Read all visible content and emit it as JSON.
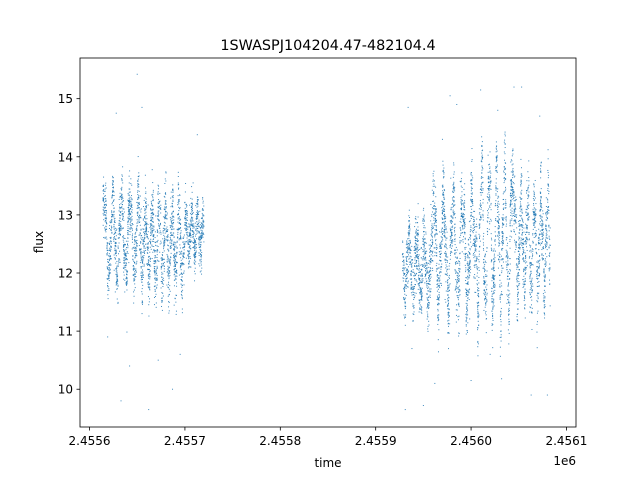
{
  "chart_data": {
    "type": "scatter",
    "title": "1SWASPJ104204.47-482104.4",
    "xlabel": "time",
    "ylabel": "flux",
    "x_offset_label": "1e6",
    "xlim": [
      2.45559,
      2.45611
    ],
    "ylim": [
      9.35,
      15.7
    ],
    "x_ticks": [
      2.4556,
      2.4557,
      2.4558,
      2.4559,
      2.456,
      2.4561
    ],
    "x_tick_labels": [
      "2.4556",
      "2.4557",
      "2.4558",
      "2.4559",
      "2.4560",
      "2.4561"
    ],
    "y_ticks": [
      10,
      11,
      12,
      13,
      14,
      15
    ],
    "y_tick_labels": [
      "10",
      "11",
      "12",
      "13",
      "14",
      "15"
    ],
    "grid": false,
    "marker_color": "#1f77b4",
    "series": [
      {
        "segments": [
          {
            "x_start": 2.455614,
            "x_end": 2.455652,
            "y_center": 12.65,
            "amplitude": 0.6,
            "period_days": 9,
            "phase": 0.5,
            "scatter": 0.25
          },
          {
            "x_start": 2.455652,
            "x_end": 2.4557,
            "y_center": 12.5,
            "amplitude": 0.55,
            "period_days": 7,
            "phase": 1.8,
            "scatter": 0.28
          },
          {
            "x_start": 2.4557,
            "x_end": 2.45572,
            "y_center": 12.7,
            "amplitude": 0.3,
            "period_days": 6,
            "phase": 0.2,
            "scatter": 0.22
          },
          {
            "x_start": 2.455928,
            "x_end": 2.45596,
            "y_center": 12.1,
            "amplitude": 0.45,
            "period_days": 8,
            "phase": 2.4,
            "scatter": 0.28
          },
          {
            "x_start": 2.45596,
            "x_end": 2.456005,
            "y_center": 12.4,
            "amplitude": 0.8,
            "period_days": 10,
            "phase": 0.9,
            "scatter": 0.3
          },
          {
            "x_start": 2.456005,
            "x_end": 2.456045,
            "y_center": 12.6,
            "amplitude": 1.1,
            "period_days": 8,
            "phase": 3.0,
            "scatter": 0.3
          },
          {
            "x_start": 2.456045,
            "x_end": 2.456083,
            "y_center": 12.5,
            "amplitude": 0.7,
            "period_days": 7,
            "phase": 1.2,
            "scatter": 0.3
          }
        ],
        "outliers": [
          [
            2.455628,
            14.75
          ],
          [
            2.455633,
            9.8
          ],
          [
            2.455642,
            10.4
          ],
          [
            2.45565,
            15.42
          ],
          [
            2.455655,
            14.85
          ],
          [
            2.455662,
            9.65
          ],
          [
            2.455672,
            10.5
          ],
          [
            2.455687,
            10.0
          ],
          [
            2.455695,
            10.6
          ],
          [
            2.455713,
            14.38
          ],
          [
            2.455619,
            10.9
          ],
          [
            2.455931,
            9.65
          ],
          [
            2.455934,
            14.85
          ],
          [
            2.455938,
            10.7
          ],
          [
            2.45595,
            9.72
          ],
          [
            2.455962,
            10.1
          ],
          [
            2.455978,
            15.05
          ],
          [
            2.455985,
            14.9
          ],
          [
            2.456,
            10.15
          ],
          [
            2.45601,
            15.15
          ],
          [
            2.45602,
            10.6
          ],
          [
            2.456032,
            10.18
          ],
          [
            2.456045,
            15.2
          ],
          [
            2.456053,
            15.2
          ],
          [
            2.456063,
            9.9
          ],
          [
            2.456072,
            14.7
          ],
          [
            2.45608,
            9.9
          ],
          [
            2.45597,
            14.3
          ],
          [
            2.455995,
            10.95
          ],
          [
            2.456028,
            14.8
          ]
        ]
      }
    ]
  }
}
